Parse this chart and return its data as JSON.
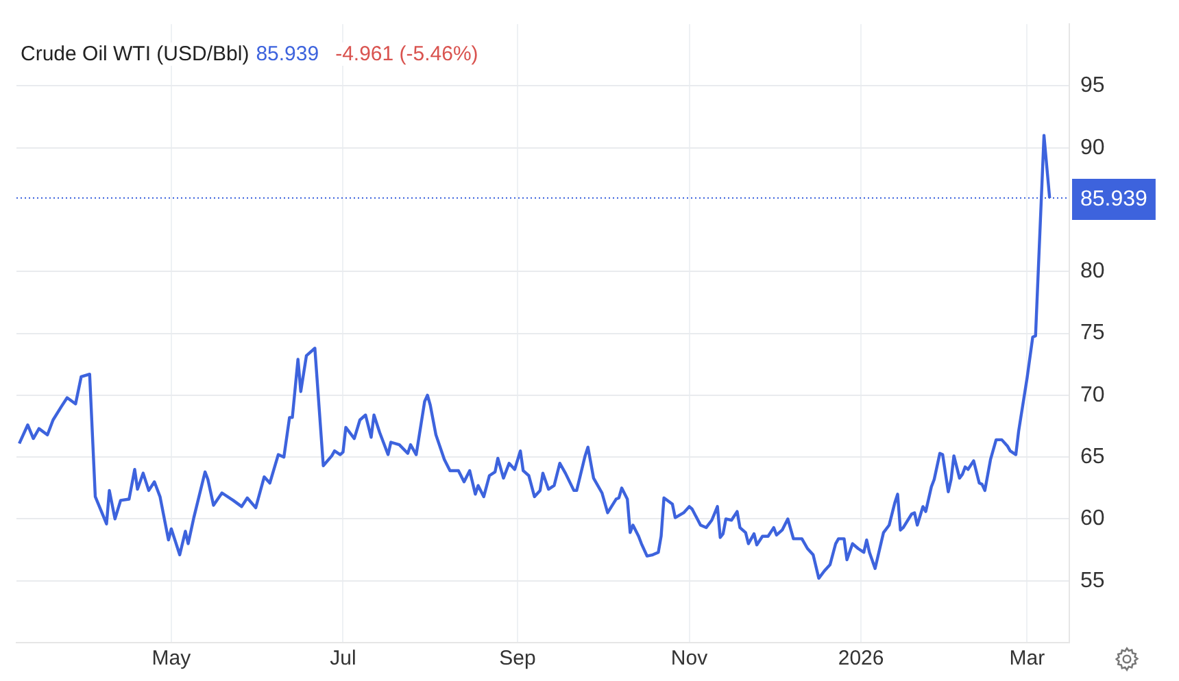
{
  "chart_data": {
    "type": "line",
    "title": "Crude Oil WTI (USD/Bbl)",
    "annotations": [
      "85.939",
      "-4.961 (-5.46%)"
    ],
    "x": [
      "2025-03-08",
      "2025-03-11",
      "2025-03-13",
      "2025-03-15",
      "2025-03-18",
      "2025-03-20",
      "2025-03-23",
      "2025-03-25",
      "2025-03-28",
      "2025-03-30",
      "2025-04-02",
      "2025-04-04",
      "2025-04-08",
      "2025-04-09",
      "2025-04-11",
      "2025-04-13",
      "2025-04-16",
      "2025-04-18",
      "2025-04-19",
      "2025-04-21",
      "2025-04-23",
      "2025-04-25",
      "2025-04-27",
      "2025-04-30",
      "2025-05-01",
      "2025-05-04",
      "2025-05-06",
      "2025-05-07",
      "2025-05-09",
      "2025-05-13",
      "2025-05-14",
      "2025-05-16",
      "2025-05-19",
      "2025-05-23",
      "2025-05-26",
      "2025-05-28",
      "2025-05-31",
      "2025-06-03",
      "2025-06-05",
      "2025-06-08",
      "2025-06-10",
      "2025-06-12",
      "2025-06-13",
      "2025-06-15",
      "2025-06-16",
      "2025-06-18",
      "2025-06-21",
      "2025-06-24",
      "2025-06-27",
      "2025-06-28",
      "2025-06-30",
      "2025-07-01",
      "2025-07-02",
      "2025-07-05",
      "2025-07-07",
      "2025-07-09",
      "2025-07-11",
      "2025-07-12",
      "2025-07-14",
      "2025-07-17",
      "2025-07-18",
      "2025-07-21",
      "2025-07-24",
      "2025-07-25",
      "2025-07-27",
      "2025-07-30",
      "2025-07-31",
      "2025-08-01",
      "2025-08-03",
      "2025-08-06",
      "2025-08-08",
      "2025-08-11",
      "2025-08-13",
      "2025-08-15",
      "2025-08-17",
      "2025-08-18",
      "2025-08-20",
      "2025-08-22",
      "2025-08-24",
      "2025-08-25",
      "2025-08-27",
      "2025-08-29",
      "2025-08-31",
      "2025-09-02",
      "2025-09-03",
      "2025-09-05",
      "2025-09-07",
      "2025-09-09",
      "2025-09-10",
      "2025-09-12",
      "2025-09-14",
      "2025-09-16",
      "2025-09-18",
      "2025-09-21",
      "2025-09-22",
      "2025-09-25",
      "2025-09-26",
      "2025-09-28",
      "2025-10-01",
      "2025-10-03",
      "2025-10-06",
      "2025-10-07",
      "2025-10-08",
      "2025-10-10",
      "2025-10-11",
      "2025-10-12",
      "2025-10-14",
      "2025-10-15",
      "2025-10-17",
      "2025-10-19",
      "2025-10-21",
      "2025-10-22",
      "2025-10-23",
      "2025-10-26",
      "2025-10-27",
      "2025-10-30",
      "2025-11-01",
      "2025-11-02",
      "2025-11-05",
      "2025-11-07",
      "2025-11-09",
      "2025-11-11",
      "2025-11-12",
      "2025-11-13",
      "2025-11-14",
      "2025-11-16",
      "2025-11-18",
      "2025-11-19",
      "2025-11-21",
      "2025-11-22",
      "2025-11-24",
      "2025-11-25",
      "2025-11-27",
      "2025-11-29",
      "2025-12-01",
      "2025-12-02",
      "2025-12-04",
      "2025-12-06",
      "2025-12-08",
      "2025-12-11",
      "2025-12-13",
      "2025-12-15",
      "2025-12-17",
      "2025-12-19",
      "2025-12-21",
      "2025-12-23",
      "2025-12-24",
      "2025-12-26",
      "2025-12-27",
      "2025-12-29",
      "2025-12-31",
      "2026-01-02",
      "2026-01-03",
      "2026-01-04",
      "2026-01-06",
      "2026-01-09",
      "2026-01-11",
      "2026-01-13",
      "2026-01-14",
      "2026-01-15",
      "2026-01-16",
      "2026-01-19",
      "2026-01-20",
      "2026-01-21",
      "2026-01-23",
      "2026-01-24",
      "2026-01-26",
      "2026-01-27",
      "2026-01-29",
      "2026-01-30",
      "2026-02-01",
      "2026-02-02",
      "2026-02-03",
      "2026-02-05",
      "2026-02-06",
      "2026-02-07",
      "2026-02-08",
      "2026-02-10",
      "2026-02-12",
      "2026-02-13",
      "2026-02-14",
      "2026-02-16",
      "2026-02-18",
      "2026-02-20",
      "2026-02-22",
      "2026-02-23",
      "2026-02-25",
      "2026-02-26",
      "2026-03-01",
      "2026-03-03",
      "2026-03-04",
      "2026-03-07",
      "2026-03-09"
    ],
    "values": [
      66.1,
      67.6,
      66.5,
      67.3,
      66.8,
      68.0,
      69.1,
      69.8,
      69.3,
      71.5,
      71.7,
      61.8,
      59.6,
      62.3,
      60.0,
      61.5,
      61.6,
      64.0,
      62.4,
      63.7,
      62.3,
      63.0,
      61.8,
      58.3,
      59.2,
      57.1,
      59.0,
      58.0,
      60.1,
      63.8,
      63.2,
      61.1,
      62.1,
      61.5,
      61.0,
      61.7,
      60.9,
      63.4,
      62.9,
      65.2,
      65.0,
      68.2,
      68.2,
      72.9,
      70.3,
      73.2,
      73.8,
      64.3,
      65.1,
      65.5,
      65.2,
      65.4,
      67.4,
      66.5,
      68.0,
      68.4,
      66.6,
      68.4,
      67.0,
      65.2,
      66.2,
      66.0,
      65.3,
      66.0,
      65.2,
      69.5,
      70.0,
      69.2,
      66.8,
      64.8,
      63.9,
      63.9,
      63.0,
      63.9,
      62.0,
      62.7,
      61.8,
      63.5,
      63.8,
      64.9,
      63.3,
      64.5,
      64.0,
      65.5,
      63.9,
      63.5,
      61.8,
      62.3,
      63.7,
      62.4,
      62.7,
      64.5,
      63.7,
      62.3,
      62.3,
      65.1,
      65.8,
      63.3,
      62.1,
      60.5,
      61.6,
      61.7,
      62.5,
      61.6,
      58.9,
      59.5,
      58.6,
      58.0,
      57.0,
      57.1,
      57.3,
      58.6,
      61.7,
      61.2,
      60.1,
      60.5,
      61.0,
      60.8,
      59.5,
      59.3,
      59.9,
      61.0,
      58.5,
      58.8,
      60.0,
      59.9,
      60.6,
      59.3,
      58.9,
      58.0,
      58.8,
      57.9,
      58.6,
      58.6,
      59.3,
      58.7,
      59.1,
      60.0,
      58.4,
      58.4,
      57.6,
      57.1,
      55.2,
      55.8,
      56.3,
      58.0,
      58.4,
      58.4,
      56.7,
      58.0,
      57.6,
      57.3,
      58.3,
      57.3,
      56.0,
      58.9,
      59.5,
      61.3,
      62.0,
      59.1,
      59.3,
      60.4,
      60.5,
      59.5,
      61.0,
      60.6,
      62.6,
      63.2,
      65.3,
      65.2,
      62.2,
      63.2,
      65.1,
      63.3,
      63.6,
      64.2,
      64.0,
      64.7,
      62.9,
      62.8,
      62.3,
      64.8,
      66.4,
      66.4,
      65.9,
      65.5,
      65.2,
      67.1,
      71.4,
      74.7,
      74.8,
      91.0,
      85.939
    ],
    "color": "#3d63dd",
    "marker": "none",
    "line_style": "solid",
    "xlim": [
      "2025-03-07",
      "2026-03-16"
    ],
    "xticks": [
      {
        "value": "2025-05-01",
        "label": "May"
      },
      {
        "value": "2025-07-01",
        "label": "Jul"
      },
      {
        "value": "2025-09-01",
        "label": "Sep"
      },
      {
        "value": "2025-11-01",
        "label": "Nov"
      },
      {
        "value": "2026-01-01",
        "label": "2026"
      },
      {
        "value": "2026-03-01",
        "label": "Mar"
      }
    ],
    "ylim": [
      50,
      100
    ],
    "yticks": [
      55,
      60,
      65,
      70,
      75,
      80,
      90,
      95
    ],
    "ref_lines": [
      {
        "axis": "y",
        "value": 85.939,
        "label": "85.939",
        "color": "#3d63dd",
        "line_style": "dotted"
      }
    ],
    "grid": true
  }
}
